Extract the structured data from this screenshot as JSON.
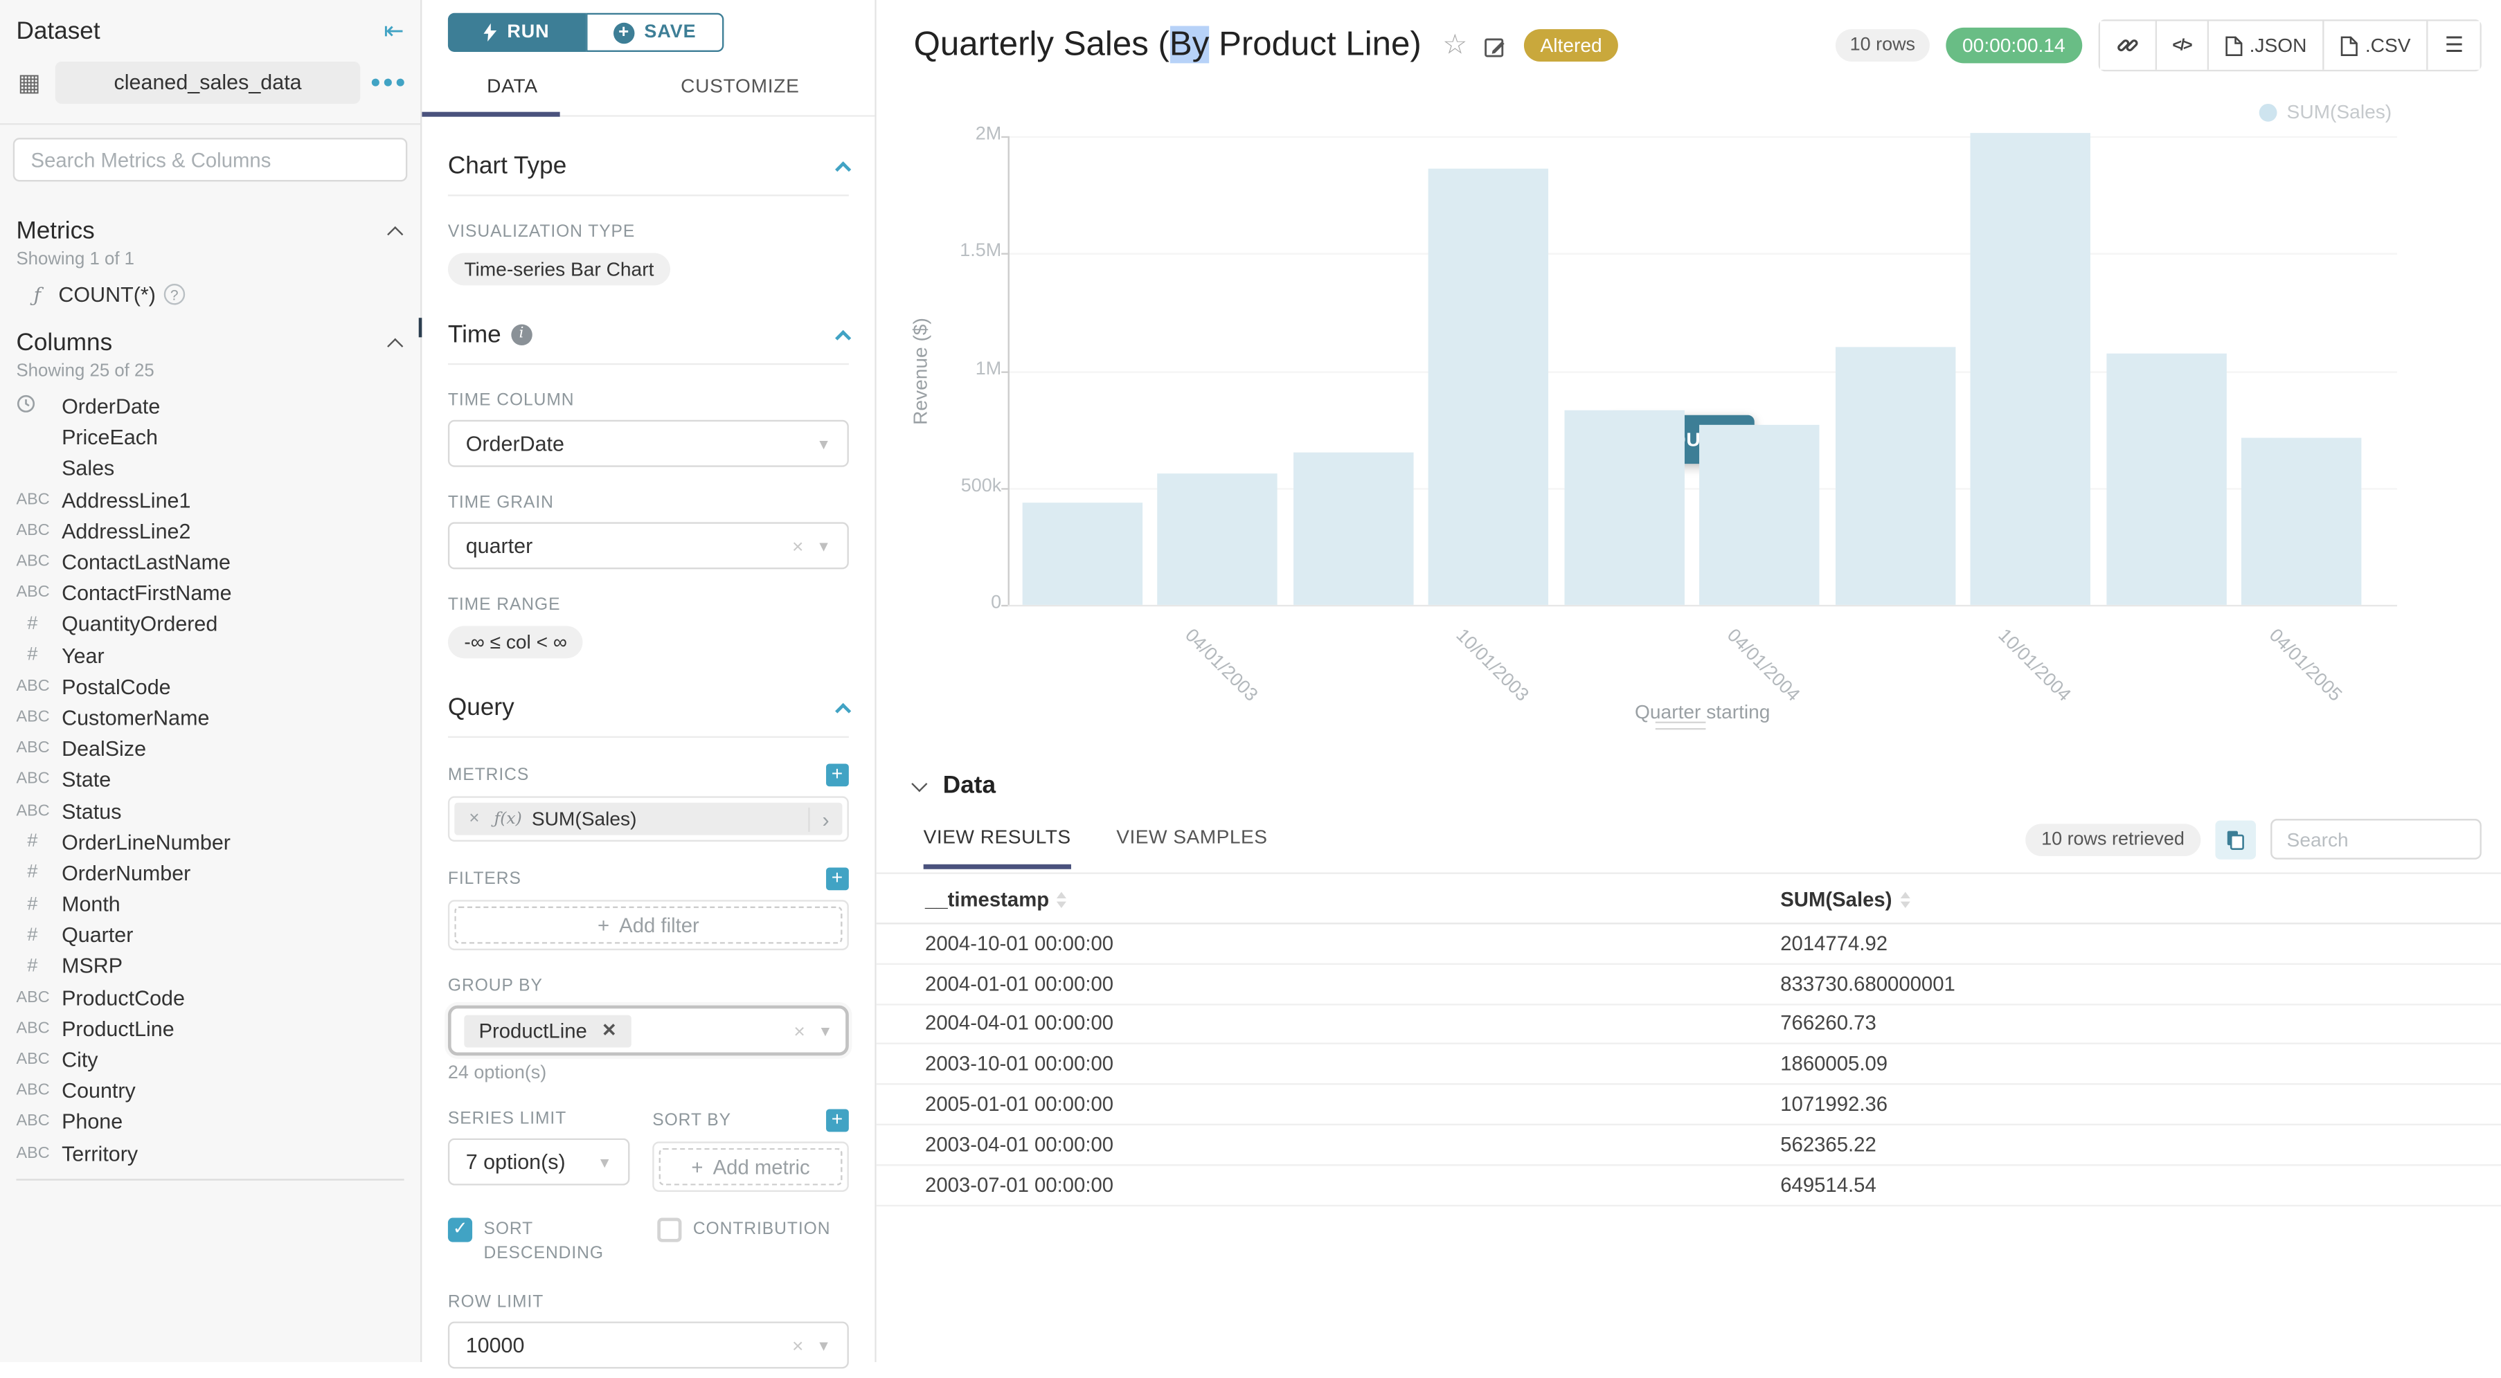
{
  "colors": {
    "accent": "#3D7E96",
    "accent-light": "#41A3C4",
    "tab-underline": "#4A527D",
    "altered": "#C9A83C",
    "timer": "#69BD85",
    "bar": "#DCEBF2",
    "legend-dot": "#CEE4EF"
  },
  "sidebar": {
    "title": "Dataset",
    "dataset_name": "cleaned_sales_data",
    "search_placeholder": "Search Metrics & Columns",
    "metrics_section": {
      "title": "Metrics",
      "showing": "Showing 1 of 1",
      "metrics": [
        {
          "name": "COUNT(*)"
        }
      ]
    },
    "columns_section": {
      "title": "Columns",
      "showing": "Showing 25 of 25",
      "columns": [
        {
          "name": "OrderDate",
          "type": "time"
        },
        {
          "name": "PriceEach",
          "type": "none"
        },
        {
          "name": "Sales",
          "type": "none"
        },
        {
          "name": "AddressLine1",
          "type": "text"
        },
        {
          "name": "AddressLine2",
          "type": "text"
        },
        {
          "name": "ContactLastName",
          "type": "text"
        },
        {
          "name": "ContactFirstName",
          "type": "text"
        },
        {
          "name": "QuantityOrdered",
          "type": "num"
        },
        {
          "name": "Year",
          "type": "num"
        },
        {
          "name": "PostalCode",
          "type": "text"
        },
        {
          "name": "CustomerName",
          "type": "text"
        },
        {
          "name": "DealSize",
          "type": "text"
        },
        {
          "name": "State",
          "type": "text"
        },
        {
          "name": "Status",
          "type": "text"
        },
        {
          "name": "OrderLineNumber",
          "type": "num"
        },
        {
          "name": "OrderNumber",
          "type": "num"
        },
        {
          "name": "Month",
          "type": "num"
        },
        {
          "name": "Quarter",
          "type": "num"
        },
        {
          "name": "MSRP",
          "type": "num"
        },
        {
          "name": "ProductCode",
          "type": "text"
        },
        {
          "name": "ProductLine",
          "type": "text"
        },
        {
          "name": "City",
          "type": "text"
        },
        {
          "name": "Country",
          "type": "text"
        },
        {
          "name": "Phone",
          "type": "text"
        },
        {
          "name": "Territory",
          "type": "text"
        }
      ]
    }
  },
  "controls": {
    "run_label": "RUN",
    "save_label": "SAVE",
    "tab_data": "DATA",
    "tab_customize": "CUSTOMIZE",
    "chart_type": {
      "title": "Chart Type",
      "viz_label": "VISUALIZATION TYPE",
      "viz_type": "Time-series Bar Chart"
    },
    "time": {
      "title": "Time",
      "time_column_label": "TIME COLUMN",
      "time_column": "OrderDate",
      "time_grain_label": "TIME GRAIN",
      "time_grain": "quarter",
      "time_range_label": "TIME RANGE",
      "time_range": "-∞ ≤ col < ∞"
    },
    "query": {
      "title": "Query",
      "metrics_label": "METRICS",
      "metric_prefix": "ƒ(x)",
      "metric_chip": "SUM(Sales)",
      "filters_label": "FILTERS",
      "add_filter": "Add filter",
      "group_by_label": "GROUP BY",
      "group_by_chip": "ProductLine",
      "group_by_options": "24 option(s)",
      "series_limit_label": "SERIES LIMIT",
      "series_limit": "7 option(s)",
      "sort_by_label": "SORT BY",
      "add_metric": "Add metric",
      "sort_descending_label": "SORT DESCENDING",
      "contribution_label": "CONTRIBUTION",
      "row_limit_label": "ROW LIMIT",
      "row_limit": "10000"
    }
  },
  "header": {
    "title_parts": [
      "Quarterly Sales (",
      "By",
      " Product Line)"
    ],
    "altered_badge": "Altered",
    "rows_badge": "10 rows",
    "timer": "00:00:00.14",
    "export_json": ".JSON",
    "export_csv": ".CSV"
  },
  "chart": {
    "run_query_label": "RUN QUERY",
    "legend": "SUM(Sales)",
    "ylabel": "Revenue ($)",
    "xlabel": "Quarter starting"
  },
  "chart_data": {
    "type": "bar",
    "title": "Quarterly Sales (By Product Line)",
    "x": [
      "2003-01-01",
      "2003-04-01",
      "2003-07-01",
      "2003-10-01",
      "2004-01-01",
      "2004-04-01",
      "2004-07-01",
      "2004-10-01",
      "2005-01-01",
      "2005-04-01"
    ],
    "series": [
      {
        "name": "SUM(Sales)",
        "values": [
          438000,
          562365.22,
          649514.54,
          1860005.09,
          833730.68,
          766260.73,
          1104000,
          2014774.92,
          1071992.36,
          714000
        ]
      }
    ],
    "x_tick_labels": [
      "04/01/2003",
      "10/01/2003",
      "04/01/2004",
      "10/01/2004",
      "04/01/2005"
    ],
    "y_ticks": [
      "2M",
      "1.5M",
      "1M",
      "500k",
      "0"
    ],
    "ylim": [
      0,
      2000000
    ],
    "xlabel": "Quarter starting",
    "ylabel": "Revenue ($)",
    "grid": true,
    "legend_position": "top-right"
  },
  "data_panel": {
    "title": "Data",
    "tab_results": "VIEW RESULTS",
    "tab_samples": "VIEW SAMPLES",
    "rows_retrieved": "10 rows retrieved",
    "search_placeholder": "Search",
    "table": {
      "columns": [
        "__timestamp",
        "SUM(Sales)"
      ],
      "rows": [
        [
          "2004-10-01 00:00:00",
          "2014774.92"
        ],
        [
          "2004-01-01 00:00:00",
          "833730.680000001"
        ],
        [
          "2004-04-01 00:00:00",
          "766260.73"
        ],
        [
          "2003-10-01 00:00:00",
          "1860005.09"
        ],
        [
          "2005-01-01 00:00:00",
          "1071992.36"
        ],
        [
          "2003-04-01 00:00:00",
          "562365.22"
        ],
        [
          "2003-07-01 00:00:00",
          "649514.54"
        ]
      ]
    }
  }
}
